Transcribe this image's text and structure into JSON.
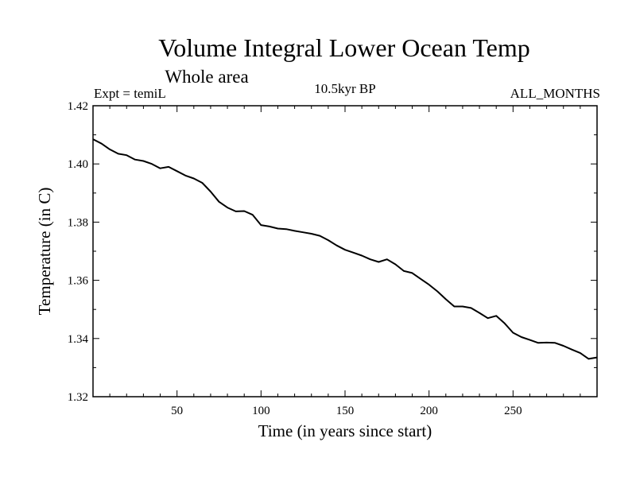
{
  "chart_data": {
    "type": "line",
    "title": "Volume Integral Lower Ocean Temp",
    "subtitle": "Whole area",
    "left_label": "Expt = temiL",
    "center_label": "10.5kyr BP",
    "right_label": "ALL_MONTHS",
    "xlabel": "Time (in years since start)",
    "ylabel": "Temperature (in C)",
    "xlim": [
      0,
      300
    ],
    "ylim": [
      1.32,
      1.42
    ],
    "xticks": [
      50,
      100,
      150,
      200,
      250
    ],
    "yticks": [
      1.32,
      1.34,
      1.36,
      1.38,
      1.4,
      1.42
    ],
    "ytick_labels": [
      "1.32",
      "1.34",
      "1.36",
      "1.38",
      "1.40",
      "1.42"
    ],
    "grid": false,
    "series": [
      {
        "name": "temiL",
        "color": "#000000",
        "x": [
          0,
          5,
          10,
          15,
          20,
          25,
          30,
          35,
          40,
          45,
          50,
          55,
          60,
          65,
          70,
          75,
          80,
          85,
          90,
          95,
          100,
          105,
          110,
          115,
          120,
          125,
          130,
          135,
          140,
          145,
          150,
          155,
          160,
          165,
          170,
          175,
          180,
          185,
          190,
          195,
          200,
          205,
          210,
          215,
          220,
          225,
          230,
          235,
          240,
          245,
          250,
          255,
          260,
          265,
          270,
          275,
          280,
          285,
          290,
          295,
          300
        ],
        "values": [
          1.4085,
          1.407,
          1.405,
          1.4035,
          1.403,
          1.4015,
          1.401,
          1.4,
          1.3985,
          1.399,
          1.3975,
          1.396,
          1.395,
          1.3935,
          1.3905,
          1.387,
          1.385,
          1.3837,
          1.3838,
          1.3825,
          1.379,
          1.3785,
          1.3778,
          1.3776,
          1.377,
          1.3765,
          1.376,
          1.3753,
          1.3738,
          1.372,
          1.3705,
          1.3695,
          1.3685,
          1.3672,
          1.3663,
          1.3672,
          1.3655,
          1.3632,
          1.3625,
          1.3605,
          1.3585,
          1.3562,
          1.3535,
          1.351,
          1.351,
          1.3505,
          1.3488,
          1.347,
          1.3478,
          1.3452,
          1.342,
          1.3405,
          1.3395,
          1.3385,
          1.3386,
          1.3385,
          1.3375,
          1.3362,
          1.335,
          1.333,
          1.3335
        ]
      }
    ]
  }
}
